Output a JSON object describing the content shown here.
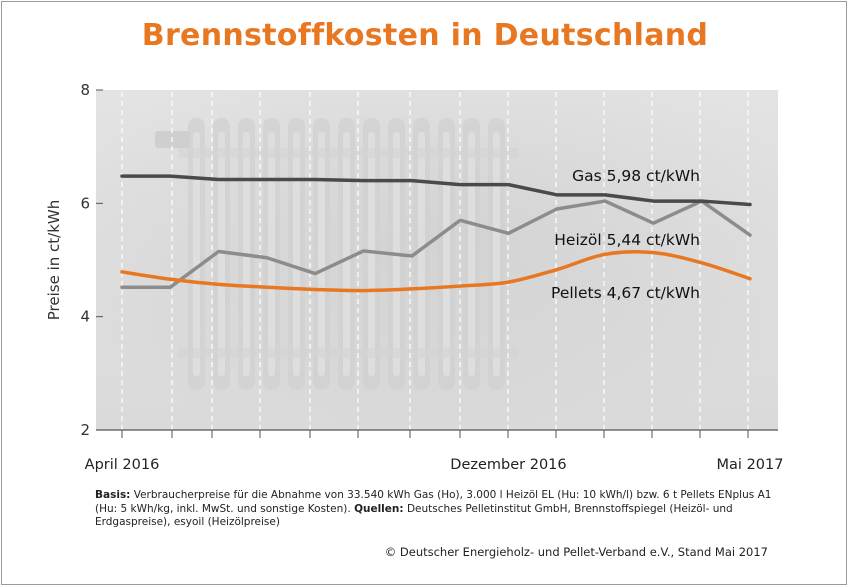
{
  "title": "Brennstoffkosten in Deutschland",
  "colors": {
    "accent": "#e87722",
    "gas": "#4a4a4a",
    "oil": "#8c8c8c",
    "pellets": "#e87722"
  },
  "chart_data": {
    "type": "line",
    "ylabel": "Preise in ct/kWh",
    "ylim": [
      2,
      8
    ],
    "yticks": [
      "2",
      "4",
      "6",
      "8"
    ],
    "x": [
      0,
      1,
      2,
      3,
      4,
      5,
      6,
      7,
      8,
      9,
      10,
      11,
      12,
      13
    ],
    "xtick_labels": [
      {
        "x": 0,
        "label": "April 2016"
      },
      {
        "x": 8,
        "label": "Dezember 2016"
      },
      {
        "x": 13,
        "label": "Mai 2017"
      }
    ],
    "grid": true,
    "series": [
      {
        "key": "gas",
        "label": "Gas 5,98 ct/kWh",
        "values": [
          6.48,
          6.48,
          6.42,
          6.42,
          6.42,
          6.4,
          6.4,
          6.33,
          6.33,
          6.15,
          6.15,
          6.04,
          6.04,
          5.98
        ]
      },
      {
        "key": "oil",
        "label": "Heizöl 5,44 ct/kWh",
        "values": [
          4.52,
          4.52,
          5.15,
          5.04,
          4.76,
          5.16,
          5.07,
          5.7,
          5.47,
          5.9,
          6.04,
          5.65,
          6.04,
          5.44
        ]
      },
      {
        "key": "pellets",
        "label": "Pellets 4,67 ct/kWh",
        "values": [
          4.79,
          4.66,
          4.57,
          4.52,
          4.48,
          4.46,
          4.49,
          4.54,
          4.61,
          4.83,
          5.1,
          5.13,
          4.95,
          4.67
        ]
      }
    ]
  },
  "footer": {
    "basis_label": "Basis:",
    "basis_text": "Verbraucherpreise für die Abnahme von 33.540 kWh Gas (Ho), 3.000 l Heizöl EL (Hu: 10 kWh/l) bzw. 6 t Pellets ENplus A1 (Hu: 5 kWh/kg, inkl. MwSt. und sonstige Kosten).",
    "sources_label": "Quellen:",
    "sources_text": "Deutsches Pelletinstitut GmbH, Brennstoffspiegel (Heizöl- und Erdgaspreise), esyoil (Heizölpreise)",
    "copyright": "© Deutscher Energieholz- und Pellet-Verband e.V., Stand Mai 2017"
  }
}
